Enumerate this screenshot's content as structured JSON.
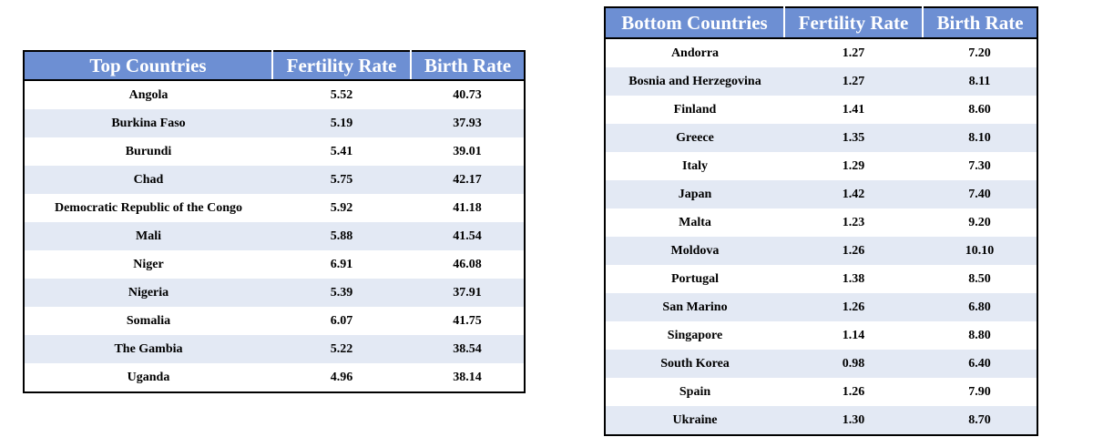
{
  "top_table": {
    "headers": [
      "Top Countries",
      "Fertility Rate",
      "Birth Rate"
    ],
    "rows": [
      [
        "Angola",
        "5.52",
        "40.73"
      ],
      [
        "Burkina Faso",
        "5.19",
        "37.93"
      ],
      [
        "Burundi",
        "5.41",
        "39.01"
      ],
      [
        "Chad",
        "5.75",
        "42.17"
      ],
      [
        "Democratic Republic of the Congo",
        "5.92",
        "41.18"
      ],
      [
        "Mali",
        "5.88",
        "41.54"
      ],
      [
        "Niger",
        "6.91",
        "46.08"
      ],
      [
        "Nigeria",
        "5.39",
        "37.91"
      ],
      [
        "Somalia",
        "6.07",
        "41.75"
      ],
      [
        "The Gambia",
        "5.22",
        "38.54"
      ],
      [
        "Uganda",
        "4.96",
        "38.14"
      ]
    ]
  },
  "bottom_table": {
    "headers": [
      "Bottom Countries",
      "Fertility Rate",
      "Birth Rate"
    ],
    "rows": [
      [
        "Andorra",
        "1.27",
        "7.20"
      ],
      [
        "Bosnia and Herzegovina",
        "1.27",
        "8.11"
      ],
      [
        "Finland",
        "1.41",
        "8.60"
      ],
      [
        "Greece",
        "1.35",
        "8.10"
      ],
      [
        "Italy",
        "1.29",
        "7.30"
      ],
      [
        "Japan",
        "1.42",
        "7.40"
      ],
      [
        "Malta",
        "1.23",
        "9.20"
      ],
      [
        "Moldova",
        "1.26",
        "10.10"
      ],
      [
        "Portugal",
        "1.38",
        "8.50"
      ],
      [
        "San Marino",
        "1.26",
        "6.80"
      ],
      [
        "Singapore",
        "1.14",
        "8.80"
      ],
      [
        "South Korea",
        "0.98",
        "6.40"
      ],
      [
        "Spain",
        "1.26",
        "7.90"
      ],
      [
        "Ukraine",
        "1.30",
        "8.70"
      ]
    ]
  },
  "colors": {
    "header_background": "#6d8fd3",
    "header_text": "#ffffff",
    "band_row": "#e3e9f4",
    "plain_row": "#ffffff",
    "border": "#000000"
  }
}
